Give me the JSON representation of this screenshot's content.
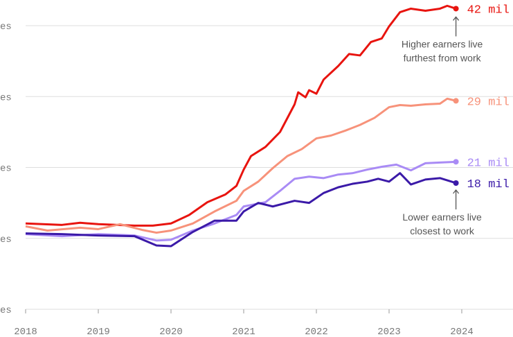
{
  "chart_data": {
    "type": "line",
    "xlim": [
      2018,
      2024
    ],
    "xticks": [
      2018,
      2019,
      2020,
      2021,
      2022,
      2023,
      2024
    ],
    "ylim": [
      0,
      40
    ],
    "yticks": [
      {
        "value": 0,
        "label": "es"
      },
      {
        "value": 10,
        "label": "es"
      },
      {
        "value": 20,
        "label": "es"
      },
      {
        "value": 30,
        "label": "es"
      },
      {
        "value": 40,
        "label": "es"
      }
    ],
    "grid": true,
    "series": [
      {
        "name": "42 mil",
        "color": "#e8140f",
        "x": [
          2018,
          2018.5,
          2018.75,
          2019,
          2019.5,
          2019.75,
          2020,
          2020.25,
          2020.5,
          2020.75,
          2020.9,
          2021,
          2021.1,
          2021.3,
          2021.5,
          2021.7,
          2021.75,
          2021.85,
          2021.9,
          2022,
          2022.1,
          2022.3,
          2022.45,
          2022.6,
          2022.75,
          2022.9,
          2023,
          2023.15,
          2023.3,
          2023.5,
          2023.7,
          2023.8,
          2023.92
        ],
        "values": [
          12.1,
          11.9,
          12.2,
          12.0,
          11.8,
          11.8,
          12.1,
          13.3,
          15.1,
          16.2,
          17.4,
          19.7,
          21.6,
          22.9,
          25.0,
          28.9,
          30.6,
          29.9,
          30.9,
          30.4,
          32.4,
          34.3,
          36.0,
          35.8,
          37.7,
          38.2,
          39.9,
          41.9,
          42.4,
          42.1,
          42.4,
          42.8,
          42.4
        ]
      },
      {
        "name": "29 mil",
        "color": "#f7927a",
        "x": [
          2018,
          2018.3,
          2018.75,
          2019,
          2019.3,
          2019.6,
          2019.8,
          2020,
          2020.3,
          2020.6,
          2020.9,
          2021,
          2021.2,
          2021.4,
          2021.6,
          2021.8,
          2022,
          2022.2,
          2022.4,
          2022.6,
          2022.8,
          2023,
          2023.15,
          2023.3,
          2023.5,
          2023.7,
          2023.8,
          2023.92
        ],
        "values": [
          11.7,
          11.1,
          11.5,
          11.3,
          12.0,
          11.2,
          10.8,
          11.1,
          12.1,
          13.8,
          15.3,
          16.7,
          18.0,
          19.9,
          21.6,
          22.6,
          24.1,
          24.5,
          25.2,
          26.0,
          27.0,
          28.5,
          28.8,
          28.7,
          28.9,
          29.0,
          29.7,
          29.4
        ]
      },
      {
        "name": "21 mil",
        "color": "#a98bf5",
        "x": [
          2018,
          2018.5,
          2019,
          2019.5,
          2019.8,
          2020,
          2020.3,
          2020.6,
          2020.9,
          2021,
          2021.3,
          2021.5,
          2021.7,
          2021.9,
          2022.1,
          2022.3,
          2022.5,
          2022.7,
          2022.9,
          2023.1,
          2023.3,
          2023.5,
          2023.7,
          2023.92
        ],
        "values": [
          10.6,
          10.3,
          10.6,
          10.4,
          9.7,
          9.8,
          11.1,
          12.1,
          13.3,
          14.5,
          15.1,
          16.7,
          18.4,
          18.7,
          18.5,
          19.0,
          19.2,
          19.7,
          20.1,
          20.4,
          19.6,
          20.6,
          20.7,
          20.8
        ]
      },
      {
        "name": "18 mil",
        "color": "#3b1aa8",
        "x": [
          2018,
          2018.5,
          2019,
          2019.5,
          2019.8,
          2020,
          2020.3,
          2020.6,
          2020.9,
          2021,
          2021.2,
          2021.4,
          2021.7,
          2021.9,
          2022.1,
          2022.3,
          2022.5,
          2022.7,
          2022.85,
          2023,
          2023.15,
          2023.3,
          2023.5,
          2023.7,
          2023.92
        ],
        "values": [
          10.7,
          10.6,
          10.4,
          10.3,
          9.0,
          8.9,
          10.9,
          12.5,
          12.5,
          13.8,
          15.0,
          14.5,
          15.3,
          15.0,
          16.4,
          17.2,
          17.7,
          18.0,
          18.4,
          18.0,
          19.2,
          17.6,
          18.3,
          18.5,
          17.8
        ]
      }
    ],
    "annotations": [
      {
        "lines": [
          "Higher earners live",
          "furthest from work"
        ],
        "series": 0
      },
      {
        "lines": [
          "Lower earners live",
          "closest to work"
        ],
        "series": 3
      }
    ]
  }
}
